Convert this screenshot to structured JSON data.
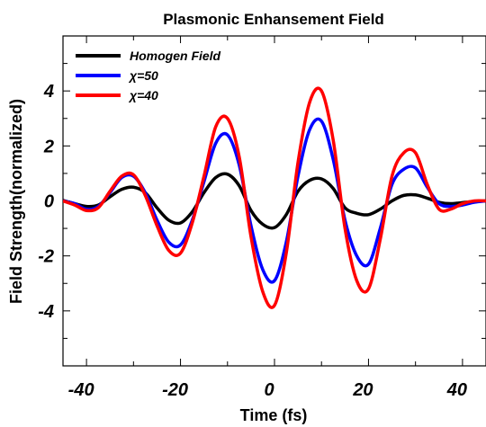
{
  "chart_data": {
    "type": "line",
    "title": "Plasmonic Enhansement Field",
    "xlabel": "Time (fs)",
    "ylabel": "Field Strength(normalized)",
    "xlim": [
      -45,
      45
    ],
    "ylim": [
      -6,
      6
    ],
    "xticks": [
      -40,
      -20,
      0,
      20,
      40
    ],
    "yticks": [
      -4,
      -2,
      0,
      2,
      4
    ],
    "xtick_labels": [
      "-40",
      "-20",
      "0",
      "20",
      "40"
    ],
    "ytick_labels": [
      "-4",
      "-2",
      "0",
      "2",
      "4"
    ],
    "grid": false,
    "legend_position": "top-left",
    "x": [
      -45,
      -42.5,
      -40,
      -37.5,
      -35,
      -32.5,
      -30,
      -27.5,
      -25,
      -22.5,
      -20,
      -17.5,
      -15,
      -12.5,
      -10,
      -7.5,
      -5,
      -2.5,
      0,
      2.5,
      5,
      7.5,
      10,
      12.5,
      15,
      17.5,
      20,
      22.5,
      25,
      27.5,
      30,
      32.5,
      35,
      37.5,
      40,
      42.5,
      45
    ],
    "series": [
      {
        "name": "Homogen Field",
        "color": "#000000",
        "values": [
          0.02,
          -0.1,
          -0.2,
          -0.15,
          0.15,
          0.42,
          0.5,
          0.3,
          -0.25,
          -0.7,
          -0.8,
          -0.4,
          0.3,
          0.85,
          0.97,
          0.55,
          -0.35,
          -0.85,
          -0.97,
          -0.5,
          0.35,
          0.75,
          0.8,
          0.45,
          -0.25,
          -0.45,
          -0.5,
          -0.3,
          0.0,
          0.2,
          0.22,
          0.1,
          -0.05,
          -0.1,
          -0.06,
          -0.02,
          0.0
        ]
      },
      {
        "name": "χ=50",
        "color": "#0000ff",
        "values": [
          0.0,
          -0.1,
          -0.3,
          -0.2,
          0.3,
          0.85,
          0.9,
          0.3,
          -0.7,
          -1.5,
          -1.6,
          -0.7,
          0.7,
          2.1,
          2.4,
          1.3,
          -0.9,
          -2.5,
          -2.9,
          -1.5,
          0.9,
          2.6,
          2.9,
          1.5,
          -0.7,
          -2.0,
          -2.3,
          -1.0,
          0.6,
          1.15,
          1.2,
          0.5,
          -0.1,
          -0.2,
          -0.15,
          -0.05,
          0.0
        ]
      },
      {
        "name": "χ=40",
        "color": "#ff0000",
        "values": [
          0.0,
          -0.15,
          -0.35,
          -0.25,
          0.35,
          0.9,
          0.95,
          0.2,
          -0.9,
          -1.8,
          -1.9,
          -0.8,
          0.9,
          2.7,
          3.0,
          1.6,
          -1.3,
          -3.3,
          -3.8,
          -1.9,
          1.4,
          3.6,
          4.0,
          2.2,
          -1.0,
          -2.9,
          -3.2,
          -1.4,
          0.9,
          1.75,
          1.75,
          0.6,
          -0.3,
          -0.3,
          -0.1,
          0.0,
          0.0
        ]
      }
    ]
  },
  "legend": {
    "items": [
      {
        "label": "Homogen Field",
        "color": "#000000"
      },
      {
        "label": "χ=50",
        "color": "#0000ff"
      },
      {
        "label": "χ=40",
        "color": "#ff0000"
      }
    ]
  }
}
